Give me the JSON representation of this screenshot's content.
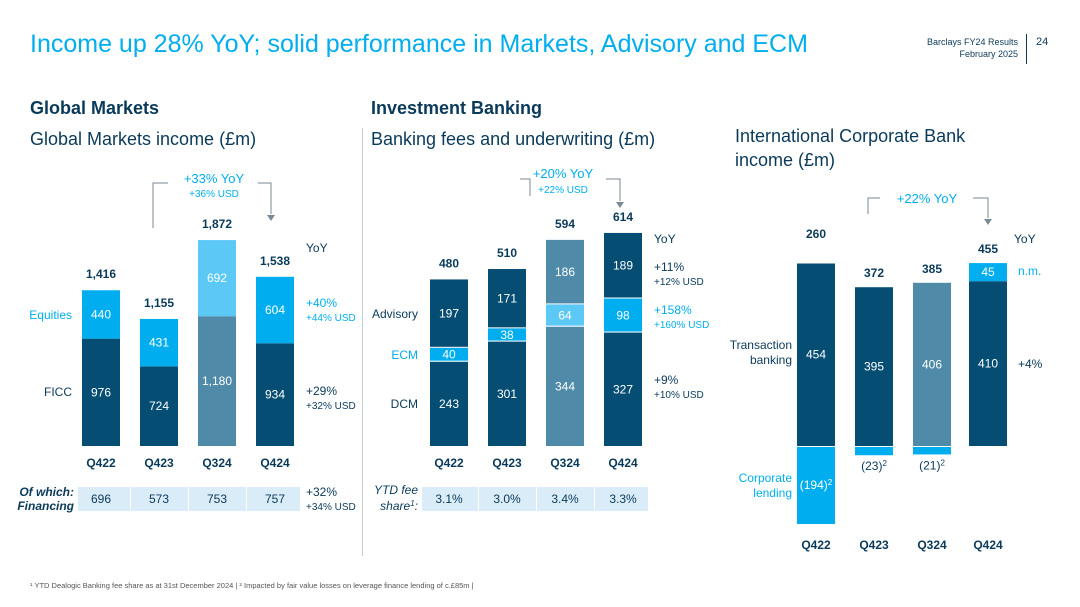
{
  "page_title": "Income up 28% YoY; solid performance in Markets, Advisory and ECM",
  "header": {
    "line1": "Barclays FY24 Results",
    "line2": "February 2025",
    "page_number": "24"
  },
  "sections": {
    "global_markets": {
      "heading": "Global Markets",
      "subtitle": "Global Markets income (£m)"
    },
    "investment_banking": {
      "heading": "Investment Banking",
      "subtitle": "Banking fees and underwriting (£m)"
    },
    "icb": {
      "subtitle_line1": "International Corporate Bank",
      "subtitle_line2": "income (£m)"
    }
  },
  "footnote": "¹ YTD Dealogic Banking fee share as at 31st December 2024 | ² Impacted by fair value losses on leverage finance lending of c.£85m |",
  "colors": {
    "dark": "#064d73",
    "mid": "#4f8ba9",
    "light": "#00aeef",
    "lighter": "#5bc8f5",
    "accent": "#00aeef",
    "text": "#0a3a5a",
    "table_bg": "#d9ecf8"
  },
  "chart_data": [
    {
      "id": "gm",
      "type": "bar",
      "stacked": true,
      "categories": [
        "Q422",
        "Q423",
        "Q324",
        "Q424"
      ],
      "series": [
        {
          "name": "FICC",
          "values": [
            976,
            724,
            1180,
            934
          ]
        },
        {
          "name": "Equities",
          "values": [
            440,
            431,
            692,
            604
          ]
        }
      ],
      "totals": [
        "1,416",
        "1,155",
        "1,872",
        "1,538"
      ],
      "value_labels": {
        "FICC": [
          "976",
          "724",
          "1,180",
          "934"
        ],
        "Equities": [
          "440",
          "431",
          "692",
          "604"
        ]
      },
      "yoy_header": "YoY",
      "yoy": [
        {
          "series": "Equities",
          "main": "+40%",
          "sub": "+44% USD"
        },
        {
          "series": "FICC",
          "main": "+29%",
          "sub": "+32% USD"
        }
      ],
      "bracket": {
        "main": "+33% YoY",
        "sub": "+36% USD"
      },
      "table": {
        "label_line1": "Of which:",
        "label_line2": "Financing",
        "values": [
          "696",
          "573",
          "753",
          "757"
        ],
        "yoy_main": "+32%",
        "yoy_sub": "+34% USD"
      }
    },
    {
      "id": "ib",
      "type": "bar",
      "stacked": true,
      "categories": [
        "Q422",
        "Q423",
        "Q324",
        "Q424"
      ],
      "series": [
        {
          "name": "DCM",
          "values": [
            243,
            301,
            344,
            327
          ]
        },
        {
          "name": "ECM",
          "values": [
            40,
            38,
            64,
            98
          ]
        },
        {
          "name": "Advisory",
          "values": [
            197,
            171,
            186,
            189
          ]
        }
      ],
      "totals": [
        "480",
        "510",
        "594",
        "614"
      ],
      "value_labels": {
        "DCM": [
          "243",
          "301",
          "344",
          "327"
        ],
        "ECM": [
          "40",
          "38",
          "64",
          "98"
        ],
        "Advisory": [
          "197",
          "171",
          "186",
          "189"
        ]
      },
      "yoy_header": "YoY",
      "yoy": [
        {
          "series": "Advisory",
          "main": "+11%",
          "sub": "+12% USD"
        },
        {
          "series": "ECM",
          "main": "+158%",
          "sub": "+160% USD"
        },
        {
          "series": "DCM",
          "main": "+9%",
          "sub": "+10% USD"
        }
      ],
      "bracket": {
        "main": "+20% YoY",
        "sub": "+22% USD"
      },
      "table": {
        "label_line1": "YTD fee",
        "label_line2": "share¹:",
        "values": [
          "3.1%",
          "3.0%",
          "3.4%",
          "3.3%"
        ]
      }
    },
    {
      "id": "icb",
      "type": "bar",
      "stacked": true,
      "categories": [
        "Q422",
        "Q423",
        "Q324",
        "Q424"
      ],
      "series": [
        {
          "name": "Transaction banking",
          "values": [
            454,
            395,
            406,
            410
          ]
        },
        {
          "name": "Corporate lending",
          "values": [
            -194,
            -23,
            -21,
            45
          ]
        }
      ],
      "totals": [
        "260",
        "372",
        "385",
        "455"
      ],
      "value_labels": {
        "Transaction banking": [
          "454",
          "395",
          "406",
          "410"
        ],
        "Corporate lending": [
          "(194)",
          "(23)",
          "(21)",
          "45"
        ]
      },
      "superscript": "2",
      "legend": {
        "transaction_line1": "Transaction",
        "transaction_line2": "banking",
        "lending_line1": "Corporate",
        "lending_line2": "lending"
      },
      "yoy_header": "YoY",
      "yoy": [
        {
          "series": "Corporate lending",
          "main": "n.m."
        },
        {
          "series": "Transaction banking",
          "main": "+4%"
        }
      ],
      "bracket": {
        "main": "+22% YoY"
      }
    }
  ]
}
